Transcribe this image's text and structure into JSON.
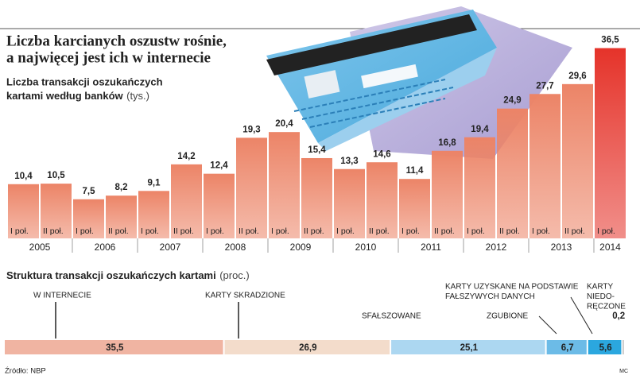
{
  "header": {
    "title": [
      "Liczba karcianych oszustw rośnie,",
      "a najwięcej jest ich w internecie"
    ]
  },
  "chart_data": [
    {
      "type": "bar",
      "title": [
        "Liczba transakcji oszukańczych",
        "kartami według banków"
      ],
      "unit": "(tys.)",
      "categories": [
        "I poł.",
        "II poł.",
        "I poł.",
        "II poł.",
        "I poł.",
        "II poł.",
        "I poł.",
        "II poł.",
        "I poł.",
        "II poł.",
        "I poł.",
        "II poł.",
        "I poł.",
        "II poł.",
        "I poł.",
        "II poł.",
        "I poł.",
        "II poł.",
        "I poł."
      ],
      "years": [
        "2005",
        "2006",
        "2007",
        "2008",
        "2009",
        "2010",
        "2011",
        "2012",
        "2013",
        "2014"
      ],
      "values": [
        10.4,
        10.5,
        7.5,
        8.2,
        9.1,
        14.2,
        12.4,
        19.3,
        20.4,
        15.4,
        13.3,
        14.6,
        11.4,
        16.8,
        19.4,
        24.9,
        27.7,
        29.6,
        36.5
      ],
      "value_labels": [
        "10,4",
        "10,5",
        "7,5",
        "8,2",
        "9,1",
        "14,2",
        "12,4",
        "19,3",
        "20,4",
        "15,4",
        "13,3",
        "14,6",
        "11,4",
        "16,8",
        "19,4",
        "24,9",
        "27,7",
        "29,6",
        "36,5"
      ],
      "colors": [
        "#ec8467",
        "#ec8467",
        "#ec8467",
        "#ec8467",
        "#ec8467",
        "#ec8467",
        "#ec8467",
        "#ec8467",
        "#ec8467",
        "#ec8467",
        "#ec8467",
        "#ec8467",
        "#ec8467",
        "#ec8467",
        "#ec8467",
        "#ec8467",
        "#ec8467",
        "#ec8467",
        "#e5332a"
      ]
    },
    {
      "type": "stacked_bar",
      "title": "Struktura transakcji oszukańczych kartami",
      "unit": "(proc.)",
      "series": [
        {
          "name": [
            "W INTERNECIE"
          ],
          "color": "#f0b4a2",
          "values": [
            35.5
          ],
          "value_labels": [
            "35,5"
          ]
        },
        {
          "name": [
            "KARTY SKRADZIONE"
          ],
          "color": "#f3dccb",
          "values": [
            26.9
          ],
          "value_labels": [
            "26,9"
          ]
        },
        {
          "name": [
            "SFAŁSZOWANE"
          ],
          "color": "#acd7f1",
          "values": [
            25.1
          ],
          "value_labels": [
            "25,1"
          ]
        },
        {
          "name": [
            "ZGUBIONE"
          ],
          "color": "#6cbbe7",
          "values": [
            6.7
          ],
          "value_labels": [
            "6,7"
          ]
        },
        {
          "name": [
            "KARTY UZYSKANE NA PODSTAWIE",
            "FAŁSZYWYCH DANYCH"
          ],
          "color": "#2ba7df",
          "values": [
            5.6
          ],
          "value_labels": [
            "5,6"
          ]
        },
        {
          "name": [
            "KARTY",
            "NIEDO-",
            "RĘCZONE"
          ],
          "color": "#9a9a9a",
          "values": [
            0.2
          ],
          "value_labels": [
            "0,2"
          ]
        }
      ]
    }
  ],
  "footer": {
    "source": "Źródło: NBP",
    "credit": "MC"
  }
}
